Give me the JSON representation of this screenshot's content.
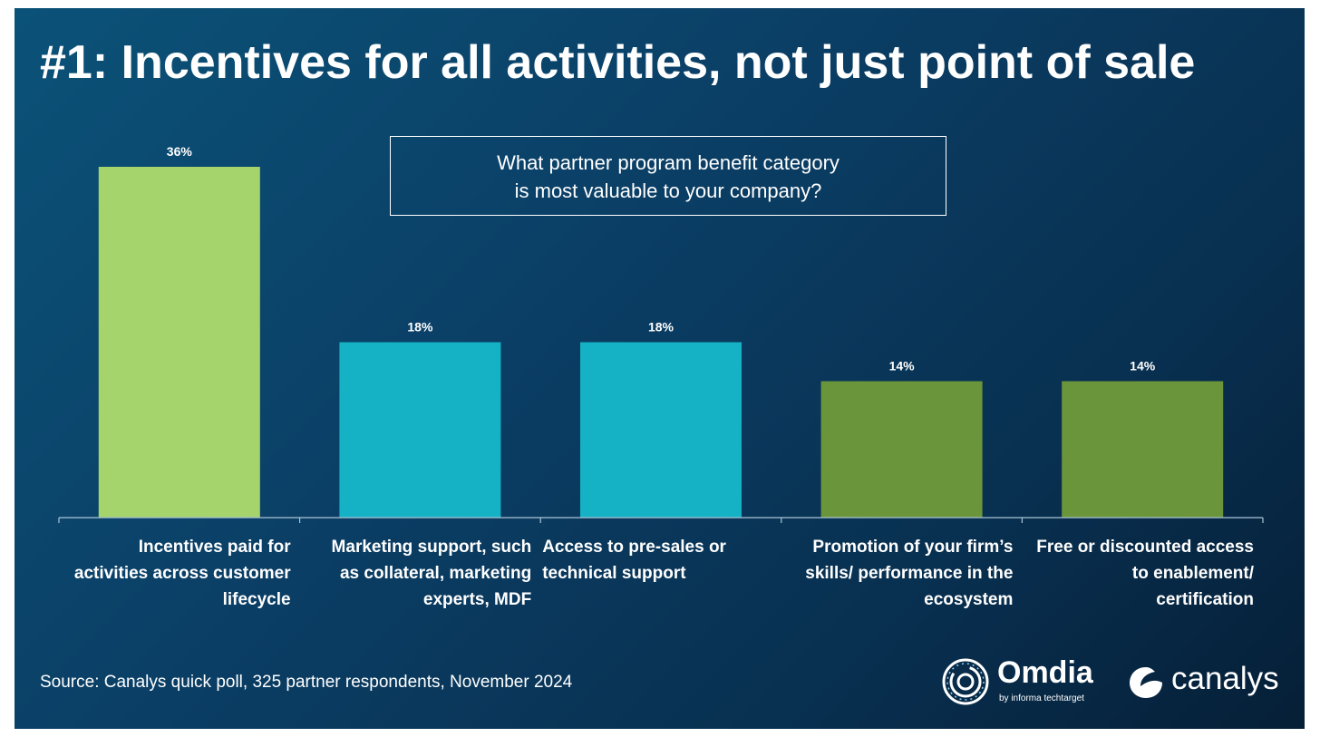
{
  "title": "#1: Incentives for all activities, not just point of sale",
  "question": {
    "line1": "What partner program benefit category",
    "line2": "is most valuable to your company?"
  },
  "source": "Source: Canalys quick poll, 325 partner respondents, November 2024",
  "logos": {
    "omdia": "Omdia",
    "omdia_by": "by informa techtarget",
    "canalys": "canalys"
  },
  "chart_data": {
    "type": "bar",
    "categories": [
      "Incentives paid for activities across customer lifecycle",
      "Marketing support, such as collateral, marketing experts, MDF",
      "Access to pre-sales or technical support",
      "Promotion of your firm’s skills/ performance in the ecosystem",
      "Free or discounted access to enablement/ certification"
    ],
    "category_lines": [
      [
        "Incentives paid for",
        "activities across customer",
        "lifecycle"
      ],
      [
        "Marketing support, such",
        "as collateral, marketing",
        "experts, MDF"
      ],
      [
        "Access to pre-sales or",
        "technical support"
      ],
      [
        "Promotion of your firm’s",
        "skills/ performance in the",
        "ecosystem"
      ],
      [
        "Free or discounted access",
        "to enablement/",
        "certification"
      ]
    ],
    "values": [
      36,
      18,
      18,
      14,
      14
    ],
    "value_labels": [
      "36%",
      "18%",
      "18%",
      "14%",
      "14%"
    ],
    "ylim": [
      0,
      40
    ],
    "colors": [
      "#a4d46b",
      "#14b2c4",
      "#14b2c4",
      "#6b953a",
      "#6b953a"
    ],
    "label_align": [
      "right",
      "right",
      "left",
      "right",
      "right"
    ],
    "grid": false,
    "legend": "none"
  }
}
